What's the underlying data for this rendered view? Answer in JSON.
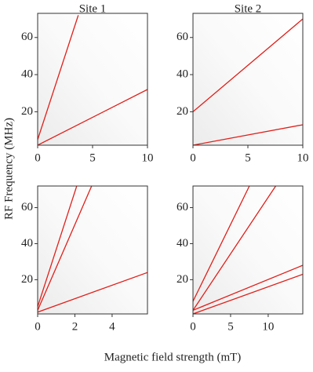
{
  "column_titles": [
    "Site 1",
    "Site 2"
  ],
  "ylabel": "RF Frequency (MHz)",
  "xlabel": "Magnetic field strength (mT)",
  "chart_data": [
    {
      "type": "line",
      "xlim": [
        0,
        10
      ],
      "ylim": [
        2,
        73
      ],
      "xticks": [
        0,
        5,
        10
      ],
      "yticks": [
        20,
        40,
        60
      ],
      "series": [
        {
          "color": "#e0201a",
          "x": [
            0,
            3.7
          ],
          "values": [
            5,
            72
          ]
        },
        {
          "color": "#e0201a",
          "x": [
            0,
            10
          ],
          "values": [
            2,
            32
          ]
        }
      ]
    },
    {
      "type": "line",
      "xlim": [
        0,
        10
      ],
      "ylim": [
        2,
        73
      ],
      "xticks": [
        0,
        5,
        10
      ],
      "yticks": [
        20,
        40,
        60
      ],
      "series": [
        {
          "color": "#e0201a",
          "x": [
            0,
            10
          ],
          "values": [
            20,
            70
          ]
        },
        {
          "color": "#e0201a",
          "x": [
            0,
            10
          ],
          "values": [
            2,
            13
          ]
        }
      ]
    },
    {
      "type": "line",
      "xlim": [
        0,
        5.9
      ],
      "ylim": [
        1,
        72
      ],
      "xticks": [
        0,
        2,
        4
      ],
      "yticks": [
        20,
        40,
        60
      ],
      "series": [
        {
          "color": "#e0201a",
          "x": [
            0,
            2.1
          ],
          "values": [
            5,
            72
          ]
        },
        {
          "color": "#e0201a",
          "x": [
            0,
            2.9
          ],
          "values": [
            3,
            72
          ]
        },
        {
          "color": "#e0201a",
          "x": [
            0,
            5.9
          ],
          "values": [
            2,
            24
          ]
        }
      ]
    },
    {
      "type": "line",
      "xlim": [
        0,
        14.6
      ],
      "ylim": [
        1,
        72
      ],
      "xticks": [
        0,
        5,
        10
      ],
      "yticks": [
        20,
        40,
        60
      ],
      "series": [
        {
          "color": "#e0201a",
          "x": [
            0,
            7.5
          ],
          "values": [
            8,
            72
          ]
        },
        {
          "color": "#e0201a",
          "x": [
            0,
            11
          ],
          "values": [
            3,
            72
          ]
        },
        {
          "color": "#e0201a",
          "x": [
            0,
            14.6
          ],
          "values": [
            3,
            28
          ]
        },
        {
          "color": "#e0201a",
          "x": [
            0,
            14.6
          ],
          "values": [
            1,
            23
          ]
        }
      ]
    }
  ]
}
